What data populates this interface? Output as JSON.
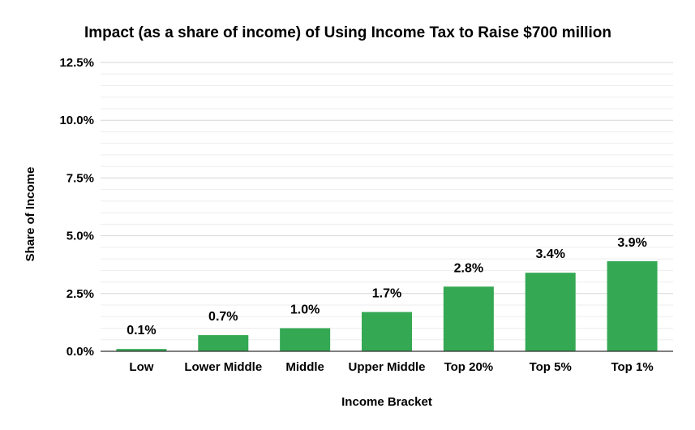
{
  "chart_data": {
    "type": "bar",
    "title": "Impact (as a share of income) of Using Income Tax to Raise $700 million",
    "xlabel": "Income Bracket",
    "ylabel": "Share of Income",
    "categories": [
      "Low",
      "Lower Middle",
      "Middle",
      "Upper Middle",
      "Top 20%",
      "Top 5%",
      "Top 1%"
    ],
    "values": [
      0.1,
      0.7,
      1.0,
      1.7,
      2.8,
      3.4,
      3.9
    ],
    "data_labels": [
      "0.1%",
      "0.7%",
      "1.0%",
      "1.7%",
      "2.8%",
      "3.4%",
      "3.9%"
    ],
    "ylim": [
      0,
      12.5
    ],
    "yticks": [
      0,
      2.5,
      5,
      7.5,
      10,
      12.5
    ],
    "ytick_labels": [
      "0.0%",
      "2.5%",
      "5.0%",
      "7.5%",
      "10.0%",
      "12.5%"
    ],
    "grid": true,
    "legend": "none",
    "bar_color": "#34a853"
  }
}
